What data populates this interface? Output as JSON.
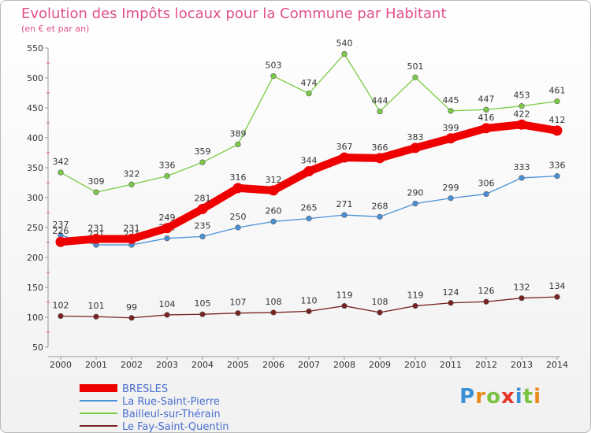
{
  "title": "Evolution des Impôts locaux pour la Commune par Habitant",
  "subtitle": "(en € et par an)",
  "logo": {
    "text": "Proxiti",
    "colors": [
      "#3b8fd6",
      "#e98a1d",
      "#7cc242",
      "#e5342a",
      "#3b8fd6",
      "#7cc242",
      "#e98a1d"
    ]
  },
  "chart_data": {
    "type": "line",
    "x": [
      "2000",
      "2001",
      "2002",
      "2003",
      "2004",
      "2005",
      "2006",
      "2007",
      "2008",
      "2009",
      "2010",
      "2011",
      "2012",
      "2013",
      "2014"
    ],
    "ylim": [
      50,
      550
    ],
    "yticks": [
      50,
      100,
      150,
      200,
      250,
      300,
      350,
      400,
      450,
      500,
      550
    ],
    "grid": "none",
    "legend_placement": "bottom-left",
    "series": [
      {
        "name": "BRESLES",
        "color": "#ee0000",
        "values": [
          226,
          231,
          231,
          249,
          281,
          316,
          312,
          344,
          367,
          366,
          383,
          399,
          416,
          422,
          412
        ],
        "labels": [
          "226",
          "231",
          "231",
          "249",
          "281",
          "316",
          "312",
          "344",
          "367",
          "366",
          "383",
          "399",
          "416",
          "422",
          "412"
        ]
      },
      {
        "name": "La Rue-Saint-Pierre",
        "color": "#4a90d9",
        "values": [
          237,
          221,
          221,
          232,
          235,
          250,
          260,
          265,
          271,
          268,
          290,
          299,
          306,
          333,
          336
        ],
        "labels": [
          "237",
          "221",
          "221",
          "232",
          "235",
          "250",
          "260",
          "265",
          "271",
          "268",
          "290",
          "299",
          "306",
          "333",
          "336"
        ]
      },
      {
        "name": "Bailleul-sur-Thérain",
        "color": "#7acc44",
        "values": [
          342,
          309,
          322,
          336,
          359,
          389,
          503,
          474,
          540,
          444,
          501,
          445,
          447,
          453,
          461
        ],
        "labels": [
          "342",
          "309",
          "322",
          "336",
          "359",
          "389",
          "503",
          "474",
          "540",
          "444",
          "501",
          "445",
          "447",
          "453",
          "461"
        ]
      },
      {
        "name": "Le Fay-Saint-Quentin",
        "color": "#7a2222",
        "values": [
          102,
          101,
          99,
          104,
          105,
          107,
          108,
          110,
          119,
          108,
          119,
          124,
          126,
          132,
          134
        ],
        "labels": [
          "102",
          "101",
          "99",
          "104",
          "105",
          "107",
          "108",
          "110",
          "119",
          "108",
          "119",
          "124",
          "126",
          "132",
          "134"
        ]
      }
    ]
  }
}
